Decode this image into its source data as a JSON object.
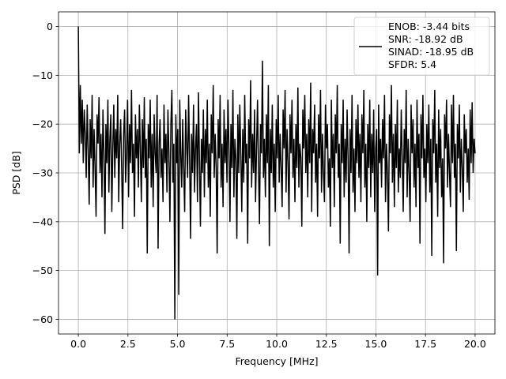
{
  "chart_data": {
    "type": "line",
    "title": "",
    "xlabel": "Frequency [MHz]",
    "ylabel": "PSD [dB]",
    "xlim": [
      -1.0,
      21.0
    ],
    "ylim": [
      -63.0,
      3.0
    ],
    "grid": true,
    "legend_placement": "top-right",
    "x_ticks": [
      0.0,
      2.5,
      5.0,
      7.5,
      10.0,
      12.5,
      15.0,
      17.5,
      20.0
    ],
    "x_tick_labels": [
      "0.0",
      "2.5",
      "5.0",
      "7.5",
      "10.0",
      "12.5",
      "15.0",
      "17.5",
      "20.0"
    ],
    "y_ticks": [
      0,
      -10,
      -20,
      -30,
      -40,
      -50,
      -60
    ],
    "y_tick_labels": [
      "0",
      "−10",
      "−20",
      "−30",
      "−40",
      "−50",
      "−60"
    ],
    "series": [
      {
        "name": "",
        "color": "#000000",
        "legend_lines": [
          "ENOB: -3.44 bits",
          "SNR: -18.92 dB",
          "SINAD: -18.95 dB",
          "SFDR: 5.4"
        ],
        "x_start": 0.0,
        "x_end": 20.0,
        "y_values": [
          0.0,
          -26.0,
          -12.0,
          -24.0,
          -15.0,
          -28.0,
          -17.0,
          -22.0,
          -31.0,
          -16.0,
          -25.0,
          -36.5,
          -19.0,
          -27.0,
          -14.0,
          -33.0,
          -21.0,
          -29.0,
          -39.0,
          -18.0,
          -24.0,
          -14.5,
          -30.0,
          -22.0,
          -35.0,
          -17.0,
          -26.0,
          -42.5,
          -20.0,
          -28.0,
          -15.0,
          -34.0,
          -23.0,
          -18.0,
          -38.0,
          -25.0,
          -16.0,
          -31.0,
          -21.0,
          -27.0,
          -14.0,
          -36.0,
          -24.0,
          -19.0,
          -29.0,
          -41.5,
          -22.0,
          -17.0,
          -32.0,
          -26.0,
          -15.0,
          -35.0,
          -20.0,
          -28.0,
          -13.0,
          -30.0,
          -24.0,
          -39.0,
          -18.0,
          -27.0,
          -21.0,
          -33.0,
          -16.0,
          -25.0,
          -36.0,
          -19.0,
          -29.0,
          -14.5,
          -31.0,
          -23.0,
          -46.5,
          -20.0,
          -27.0,
          -15.0,
          -33.0,
          -22.0,
          -37.0,
          -18.0,
          -26.0,
          -30.0,
          -14.0,
          -45.5,
          -24.0,
          -19.0,
          -31.0,
          -25.0,
          -36.0,
          -16.0,
          -28.0,
          -22.0,
          -34.0,
          -17.0,
          -26.0,
          -40.0,
          -20.0,
          -13.0,
          -32.0,
          -24.0,
          -60.0,
          -18.0,
          -28.0,
          -21.0,
          -55.0,
          -15.0,
          -26.0,
          -33.0,
          -19.0,
          -29.0,
          -38.0,
          -17.0,
          -24.0,
          -31.0,
          -14.0,
          -27.0,
          -43.5,
          -22.0,
          -30.0,
          -16.0,
          -34.0,
          -25.0,
          -20.0,
          -36.0,
          -13.5,
          -27.0,
          -41.0,
          -23.0,
          -30.0,
          -17.0,
          -35.0,
          -21.0,
          -28.0,
          -15.0,
          -33.0,
          -24.0,
          -39.0,
          -18.0,
          -26.0,
          -12.0,
          -31.0,
          -22.0,
          -29.0,
          -46.5,
          -19.0,
          -27.0,
          -14.0,
          -33.0,
          -24.0,
          -37.0,
          -17.0,
          -28.0,
          -21.0,
          -32.0,
          -15.0,
          -25.0,
          -40.0,
          -20.0,
          -29.0,
          -13.0,
          -35.0,
          -23.0,
          -27.0,
          -43.5,
          -18.0,
          -30.0,
          -16.0,
          -26.0,
          -38.0,
          -21.0,
          -32.0,
          -14.0,
          -28.0,
          -24.0,
          -44.5,
          -19.0,
          -27.0,
          -11.0,
          -33.0,
          -22.0,
          -30.0,
          -17.0,
          -36.0,
          -25.0,
          -15.0,
          -29.0,
          -40.5,
          -20.0,
          -26.0,
          -7.0,
          -31.0,
          -23.0,
          -35.0,
          -18.0,
          -28.0,
          -12.0,
          -45.0,
          -21.0,
          -30.0,
          -16.0,
          -33.0,
          -24.0,
          -38.0,
          -19.0,
          -27.0,
          -14.0,
          -32.0,
          -22.0,
          -29.0,
          -37.0,
          -17.0,
          -25.0,
          -13.0,
          -34.0,
          -21.0,
          -28.0,
          -39.5,
          -18.0,
          -26.0,
          -15.0,
          -31.0,
          -23.0,
          -36.0,
          -20.0,
          -29.0,
          -12.5,
          -33.0,
          -24.0,
          -27.0,
          -41.0,
          -17.0,
          -25.0,
          -14.0,
          -30.0,
          -22.0,
          -35.0,
          -19.0,
          -28.0,
          -11.5,
          -38.0,
          -21.0,
          -26.0,
          -16.0,
          -32.0,
          -24.0,
          -39.0,
          -18.0,
          -27.0,
          -13.0,
          -34.0,
          -22.0,
          -30.0,
          -36.0,
          -16.0,
          -25.0,
          -20.0,
          -33.0,
          -27.0,
          -41.0,
          -15.0,
          -29.0,
          -22.0,
          -37.0,
          -18.0,
          -26.0,
          -12.0,
          -31.0,
          -24.0,
          -44.5,
          -20.0,
          -28.0,
          -15.0,
          -35.0,
          -23.0,
          -32.0,
          -17.0,
          -27.0,
          -46.5,
          -21.0,
          -30.0,
          -14.0,
          -34.0,
          -25.0,
          -38.0,
          -19.0,
          -28.0,
          -16.0,
          -31.0,
          -22.0,
          -36.0,
          -18.0,
          -26.0,
          -13.0,
          -33.0,
          -24.0,
          -40.0,
          -20.0,
          -29.0,
          -15.0,
          -35.0,
          -22.0,
          -30.0,
          -17.0,
          -38.0,
          -25.0,
          -21.0,
          -51.0,
          -16.0,
          -28.0,
          -23.0,
          -33.0,
          -19.0,
          -27.0,
          -14.0,
          -36.0,
          -24.0,
          -30.0,
          -42.0,
          -18.0,
          -26.0,
          -12.0,
          -32.0,
          -22.0,
          -37.0,
          -20.0,
          -29.0,
          -15.0,
          -34.0,
          -25.0,
          -31.0,
          -17.0,
          -27.0,
          -38.0,
          -21.0,
          -28.0,
          -13.0,
          -35.0,
          -23.0,
          -30.0,
          -40.0,
          -16.0,
          -26.0,
          -19.0,
          -33.0,
          -24.0,
          -37.0,
          -15.0,
          -29.0,
          -22.0,
          -44.5,
          -18.0,
          -27.0,
          -14.0,
          -31.0,
          -25.0,
          -36.0,
          -20.0,
          -28.0,
          -16.0,
          -34.0,
          -23.0,
          -47.0,
          -19.0,
          -26.0,
          -13.0,
          -32.0,
          -24.0,
          -39.0,
          -17.0,
          -29.0,
          -21.0,
          -35.0,
          -27.0,
          -48.5,
          -18.0,
          -25.0,
          -15.0,
          -33.0,
          -22.0,
          -30.0,
          -37.0,
          -16.0,
          -28.0,
          -14.0,
          -31.0,
          -24.0,
          -46.0,
          -20.0,
          -27.0,
          -16.0,
          -34.0,
          -23.0,
          -29.0,
          -38.0,
          -18.0,
          -26.0,
          -21.0,
          -32.0,
          -25.0,
          -35.5,
          -17.0,
          -28.0,
          -15.5,
          -30.0,
          -23.0,
          -26.0
        ]
      }
    ]
  }
}
